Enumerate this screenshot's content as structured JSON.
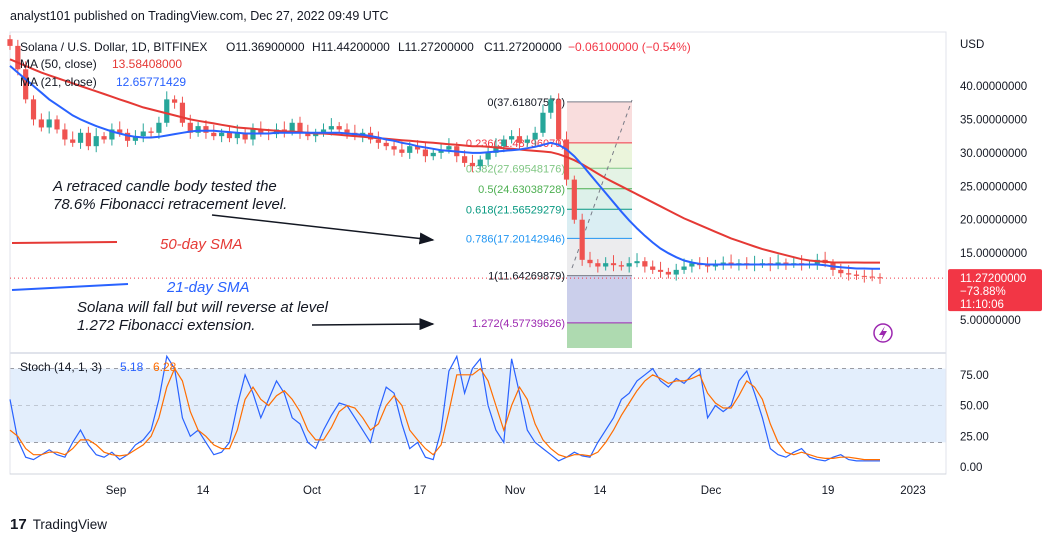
{
  "header": {
    "published_line": "analyst101 published on TradingView.com, Dec 27, 2022 09:49 UTC"
  },
  "footer": {
    "logo_glyph": "17",
    "brand": "TradingView"
  },
  "chart_data": [
    {
      "type": "candlestick",
      "symbol_line": "Solana / U.S. Dollar, 1D, BITFINEX",
      "ohlc_labels": {
        "o": "O11.36900000",
        "h": "H11.44200000",
        "l": "L11.27200000",
        "c": "C11.27200000",
        "chg": "−0.06100000 (−0.54%)"
      },
      "indicators": [
        {
          "label": "MA (50, close)",
          "value": "13.58408000",
          "color": "#e53935"
        },
        {
          "label": "MA (21, close)",
          "value": "12.65771429",
          "color": "#2962ff"
        }
      ],
      "currency": "USD",
      "ylim": [
        3.0,
        44.0
      ],
      "yticks": [
        "40.00000000",
        "35.00000000",
        "30.00000000",
        "25.00000000",
        "20.00000000",
        "15.00000000",
        "10.00000000",
        "5.00000000"
      ],
      "ytick_values": [
        40,
        35,
        30,
        25,
        20,
        15,
        10,
        5
      ],
      "last_price": {
        "price": "11.27200000",
        "change": "−73.88%",
        "countdown": "11:10:06",
        "value": 11.272
      },
      "dates": [
        "Sep 1",
        "Sep 14",
        "Oct 1",
        "Oct 17",
        "Nov 1",
        "Nov 14",
        "Dec 1",
        "Dec 19",
        "Jan 1"
      ],
      "candles_close": [
        46.0,
        42.5,
        38.0,
        35.0,
        33.8,
        35.0,
        33.5,
        32.0,
        31.5,
        33.0,
        31.0,
        32.5,
        32.0,
        33.5,
        33.0,
        31.8,
        32.5,
        33.2,
        33.0,
        34.5,
        38.0,
        37.5,
        34.5,
        33.0,
        34.0,
        33.0,
        32.5,
        33.0,
        32.2,
        33.0,
        32.0,
        33.5,
        33.0,
        32.8,
        33.5,
        33.2,
        34.5,
        33.0,
        32.5,
        33.0,
        33.5,
        34.0,
        33.5,
        33.0,
        32.5,
        33.0,
        32.0,
        31.5,
        31.0,
        30.5,
        30.0,
        31.0,
        30.5,
        29.5,
        30.0,
        30.5,
        31.0,
        29.5,
        28.5,
        28.0,
        29.0,
        30.0,
        31.0,
        32.0,
        32.5,
        31.5,
        32.0,
        33.0,
        36.0,
        38.0,
        32.0,
        26.0,
        20.0,
        14.0,
        13.5,
        13.0,
        13.5,
        13.2,
        13.0,
        13.5,
        13.8,
        13.0,
        12.5,
        12.2,
        11.8,
        12.5,
        13.0,
        13.5,
        13.2,
        13.0,
        13.4,
        13.6,
        13.3,
        13.5,
        13.2,
        13.4,
        13.5,
        13.2,
        13.6,
        13.4,
        13.5,
        13.3,
        13.4,
        14.0,
        13.5,
        12.5,
        12.0,
        11.8,
        11.6,
        11.5,
        11.4,
        11.3
      ],
      "ma50": [
        44.0,
        43.5,
        43.0,
        42.5,
        42.0,
        41.6,
        41.2,
        40.8,
        40.4,
        40.0,
        39.6,
        39.2,
        38.8,
        38.4,
        38.0,
        37.6,
        37.2,
        36.8,
        36.5,
        36.2,
        35.9,
        35.6,
        35.3,
        35.0,
        34.8,
        34.6,
        34.4,
        34.2,
        34.0,
        33.8,
        33.7,
        33.6,
        33.5,
        33.4,
        33.3,
        33.2,
        33.2,
        33.1,
        33.0,
        32.9,
        32.9,
        32.8,
        32.7,
        32.6,
        32.5,
        32.4,
        32.3,
        32.2,
        32.1,
        32.0,
        31.9,
        31.8,
        31.7,
        31.6,
        31.5,
        31.4,
        31.3,
        31.2,
        31.1,
        31.0,
        31.0,
        30.9,
        30.8,
        30.7,
        30.6,
        30.5,
        30.4,
        30.3,
        30.2,
        30.1,
        29.8,
        29.4,
        28.9,
        28.3,
        27.6,
        26.9,
        26.2,
        25.6,
        25.0,
        24.4,
        23.8,
        23.2,
        22.6,
        22.0,
        21.4,
        20.8,
        20.2,
        19.7,
        19.2,
        18.7,
        18.2,
        17.7,
        17.2,
        16.8,
        16.4,
        16.0,
        15.6,
        15.3,
        15.0,
        14.7,
        14.4,
        14.1,
        13.9,
        13.8,
        13.7,
        13.6,
        13.6,
        13.6,
        13.6,
        13.58,
        13.58,
        13.58
      ],
      "ma21": [
        43.0,
        42.0,
        41.0,
        40.0,
        39.0,
        38.0,
        37.2,
        36.4,
        35.6,
        35.0,
        34.5,
        34.0,
        33.6,
        33.2,
        32.9,
        32.6,
        32.4,
        32.3,
        32.3,
        32.4,
        32.6,
        32.8,
        33.0,
        33.2,
        33.3,
        33.3,
        33.3,
        33.2,
        33.1,
        33.0,
        32.9,
        32.9,
        32.9,
        32.9,
        33.0,
        33.0,
        33.0,
        33.0,
        33.0,
        33.0,
        33.0,
        33.0,
        33.0,
        32.9,
        32.8,
        32.7,
        32.5,
        32.3,
        32.0,
        31.8,
        31.5,
        31.3,
        31.0,
        30.8,
        30.6,
        30.4,
        30.3,
        30.2,
        30.1,
        30.0,
        30.0,
        30.1,
        30.2,
        30.3,
        30.4,
        30.5,
        30.7,
        30.9,
        31.2,
        31.5,
        31.2,
        30.5,
        29.5,
        28.2,
        26.8,
        25.4,
        24.0,
        22.6,
        21.2,
        19.9,
        18.7,
        17.6,
        16.6,
        15.7,
        15.0,
        14.4,
        13.9,
        13.6,
        13.4,
        13.3,
        13.3,
        13.3,
        13.3,
        13.3,
        13.3,
        13.3,
        13.3,
        13.3,
        13.3,
        13.3,
        13.3,
        13.3,
        13.3,
        13.3,
        13.2,
        13.0,
        12.9,
        12.8,
        12.7,
        12.7,
        12.66,
        12.66
      ],
      "fibonacci": [
        {
          "label": "0(37.61807576)",
          "value": 37.618,
          "color": "#787b86"
        },
        {
          "label": "0.236(31.48796079)",
          "value": 31.488,
          "color": "#f23645"
        },
        {
          "label": "0.382(27.69548176)",
          "value": 27.695,
          "color": "#81c784"
        },
        {
          "label": "0.5(24.63038728)",
          "value": 24.63,
          "color": "#4caf50"
        },
        {
          "label": "0.618(21.56529279)",
          "value": 21.565,
          "color": "#089981"
        },
        {
          "label": "0.786(17.20142946)",
          "value": 17.201,
          "color": "#2196f3"
        },
        {
          "label": "1(11.64269879)",
          "value": 11.643,
          "color": "#787b86"
        },
        {
          "label": "1.272(4.57739626)",
          "value": 4.577,
          "color": "#9c27b0"
        }
      ],
      "annotations": [
        {
          "text": "A retraced candle body tested the",
          "color": "#131722"
        },
        {
          "text": "78.6% Fibonacci retracement level.",
          "color": "#131722"
        },
        {
          "text": "50-day SMA",
          "color": "#e53935"
        },
        {
          "text": "21-day SMA",
          "color": "#2962ff"
        },
        {
          "text": "Solana  will fall but will reverse at level",
          "color": "#131722"
        },
        {
          "text": "1.272 Fibonacci extension.",
          "color": "#131722"
        }
      ]
    },
    {
      "type": "line",
      "label": "Stoch (14, 1, 3)",
      "k_value": "5.18",
      "d_value": "6.28",
      "ylim": [
        -3,
        90
      ],
      "yticks": [
        "75.00",
        "50.00",
        "25.00",
        "0.00"
      ],
      "ytick_values": [
        75,
        50,
        25,
        0
      ],
      "band": [
        20,
        80
      ],
      "k": [
        55,
        22,
        8,
        6,
        10,
        14,
        10,
        8,
        20,
        30,
        18,
        10,
        8,
        12,
        6,
        10,
        18,
        22,
        30,
        55,
        90,
        80,
        40,
        25,
        30,
        20,
        10,
        12,
        20,
        50,
        75,
        60,
        40,
        55,
        70,
        60,
        40,
        35,
        20,
        15,
        30,
        42,
        52,
        50,
        40,
        30,
        20,
        45,
        65,
        60,
        35,
        15,
        20,
        8,
        6,
        30,
        78,
        90,
        60,
        80,
        88,
        50,
        30,
        20,
        88,
        60,
        30,
        20,
        15,
        10,
        5,
        8,
        12,
        9,
        8,
        20,
        30,
        40,
        55,
        60,
        70,
        75,
        80,
        70,
        65,
        72,
        68,
        75,
        80,
        40,
        50,
        45,
        50,
        70,
        78,
        60,
        40,
        15,
        10,
        8,
        12,
        15,
        8,
        6,
        5,
        8,
        10,
        6,
        5,
        5,
        5,
        5
      ],
      "d": [
        30,
        25,
        15,
        10,
        10,
        12,
        12,
        10,
        15,
        22,
        22,
        18,
        12,
        10,
        9,
        10,
        14,
        18,
        25,
        40,
        65,
        80,
        70,
        45,
        30,
        25,
        18,
        15,
        15,
        30,
        55,
        65,
        55,
        50,
        58,
        62,
        55,
        45,
        30,
        22,
        22,
        32,
        45,
        50,
        48,
        40,
        30,
        35,
        50,
        58,
        50,
        30,
        22,
        15,
        10,
        18,
        45,
        75,
        75,
        75,
        80,
        70,
        50,
        30,
        50,
        65,
        55,
        35,
        22,
        15,
        10,
        8,
        10,
        10,
        9,
        12,
        20,
        30,
        42,
        52,
        62,
        70,
        75,
        72,
        68,
        70,
        70,
        72,
        75,
        60,
        52,
        48,
        48,
        58,
        70,
        65,
        55,
        35,
        20,
        12,
        10,
        12,
        10,
        8,
        7,
        7,
        8,
        8,
        7,
        6,
        6,
        6
      ]
    }
  ],
  "x_labels": [
    "Sep",
    "14",
    "Oct",
    "17",
    "Nov",
    "14",
    "Dec",
    "19",
    "2023"
  ]
}
